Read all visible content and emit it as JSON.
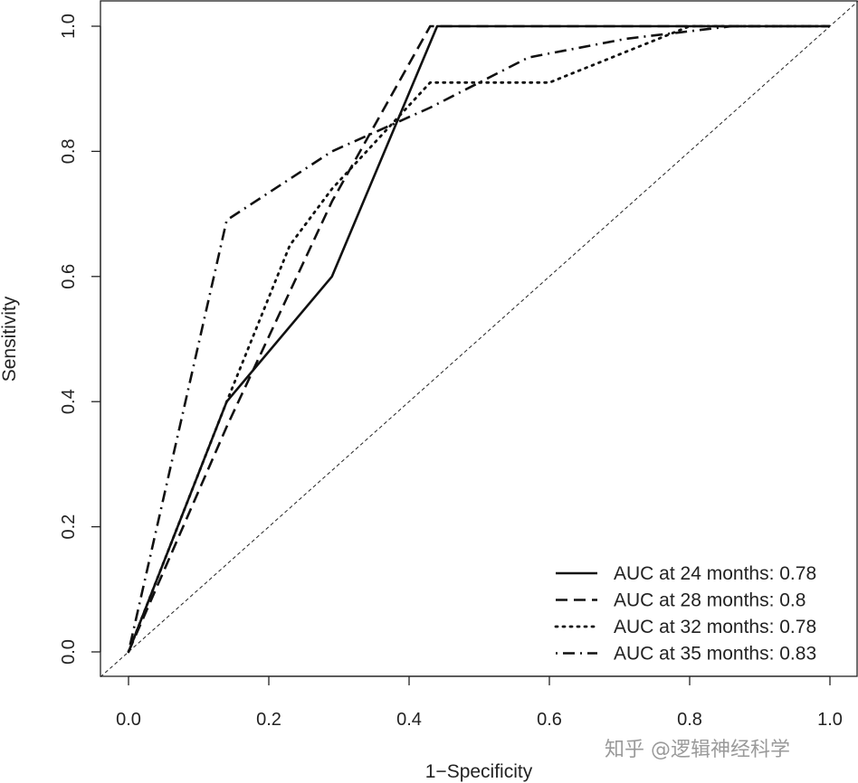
{
  "chart_data": {
    "type": "line",
    "xlabel": "1−Specificity",
    "ylabel": "Sensitivity",
    "xlim": [
      0.0,
      1.0
    ],
    "ylim": [
      0.0,
      1.0
    ],
    "x_ticks": [
      "0.0",
      "0.2",
      "0.4",
      "0.6",
      "0.8",
      "1.0"
    ],
    "y_ticks": [
      "0.0",
      "0.2",
      "0.4",
      "0.6",
      "0.8",
      "1.0"
    ],
    "grid": false,
    "legend_position": "bottom-right",
    "reference_line": {
      "style": "dashed-thin",
      "points": [
        [
          0,
          0
        ],
        [
          1,
          1
        ]
      ]
    },
    "series": [
      {
        "name": "AUC at 24 months: 0.78",
        "style": "solid",
        "points": [
          [
            0,
            0
          ],
          [
            0.14,
            0.4
          ],
          [
            0.29,
            0.6
          ],
          [
            0.44,
            1.0
          ],
          [
            1.0,
            1.0
          ]
        ]
      },
      {
        "name": "AUC at 28 months: 0.8",
        "style": "dashed",
        "points": [
          [
            0,
            0
          ],
          [
            0.14,
            0.36
          ],
          [
            0.29,
            0.72
          ],
          [
            0.43,
            1.0
          ],
          [
            1.0,
            1.0
          ]
        ]
      },
      {
        "name": "AUC at 32 months: 0.78",
        "style": "dotted",
        "points": [
          [
            0,
            0
          ],
          [
            0.14,
            0.4
          ],
          [
            0.23,
            0.65
          ],
          [
            0.29,
            0.74
          ],
          [
            0.43,
            0.91
          ],
          [
            0.6,
            0.91
          ],
          [
            0.8,
            1.0
          ],
          [
            1.0,
            1.0
          ]
        ]
      },
      {
        "name": "AUC at 35 months: 0.83",
        "style": "dotdash",
        "points": [
          [
            0,
            0
          ],
          [
            0.14,
            0.69
          ],
          [
            0.29,
            0.8
          ],
          [
            0.43,
            0.87
          ],
          [
            0.57,
            0.95
          ],
          [
            0.71,
            0.98
          ],
          [
            0.86,
            1.0
          ],
          [
            1.0,
            1.0
          ]
        ]
      }
    ]
  },
  "watermark": "知乎 @逻辑神经科学"
}
